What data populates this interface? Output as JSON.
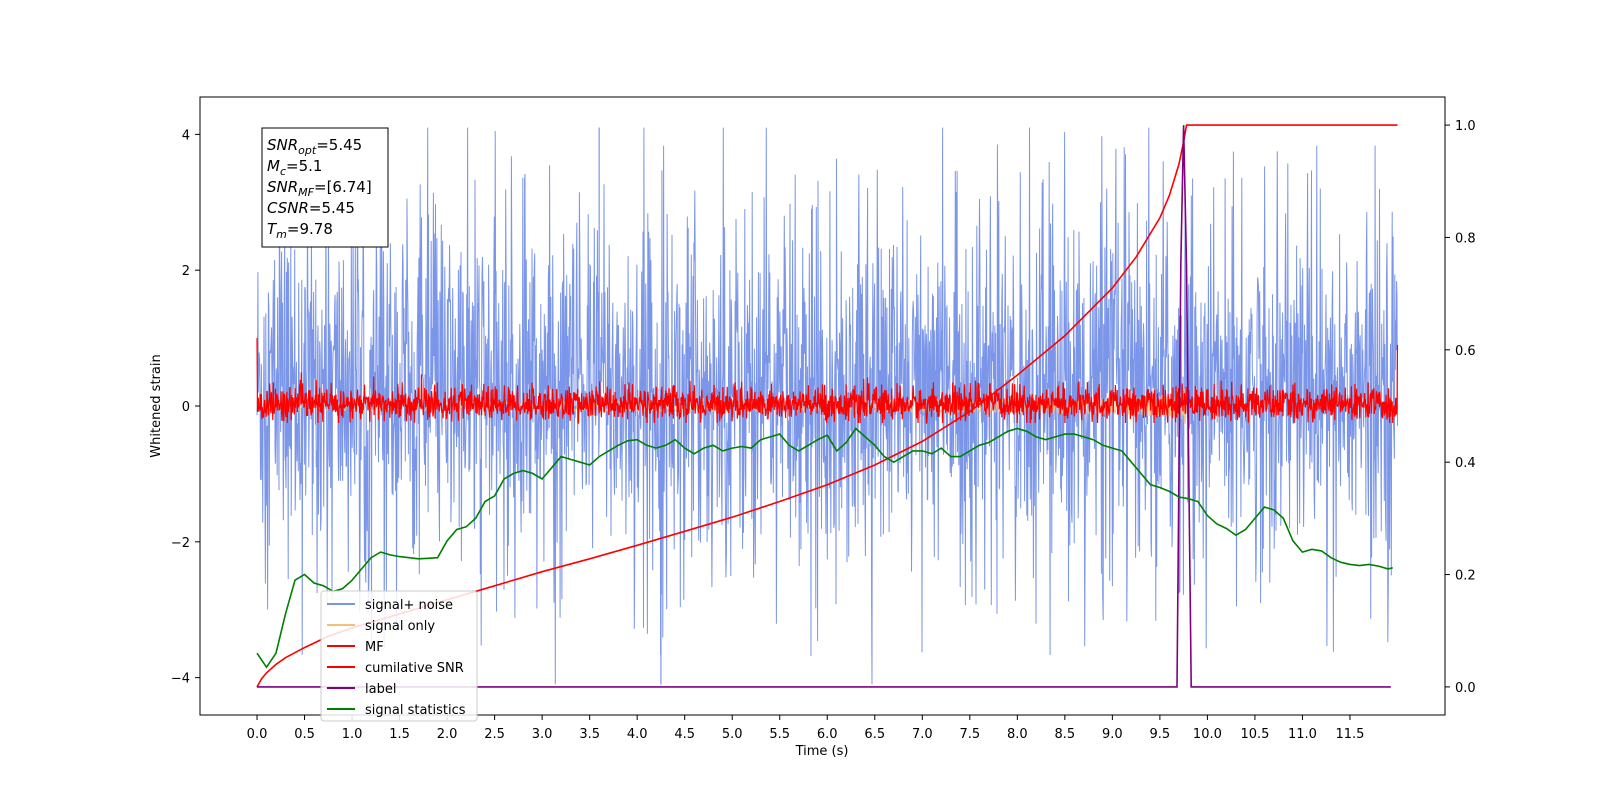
{
  "chart_data": {
    "type": "line",
    "title": "",
    "xlabel": "Time (s)",
    "ylabel": "Whitened strain",
    "ylabel_right": "",
    "xlim": [
      -0.6,
      12.5
    ],
    "ylim": [
      -4.55,
      4.55
    ],
    "ylim_right": [
      -0.05,
      1.05
    ],
    "x_ticks": [
      0.0,
      0.5,
      1.0,
      1.5,
      2.0,
      2.5,
      3.0,
      3.5,
      4.0,
      4.5,
      5.0,
      5.5,
      6.0,
      6.5,
      7.0,
      7.5,
      8.0,
      8.5,
      9.0,
      9.5,
      10.0,
      10.5,
      11.0,
      11.5
    ],
    "x_tick_labels": [
      "0.0",
      "0.5",
      "1.0",
      "1.5",
      "2.0",
      "2.5",
      "3.0",
      "3.5",
      "4.0",
      "4.5",
      "5.0",
      "5.5",
      "6.0",
      "6.5",
      "7.0",
      "7.5",
      "8.0",
      "8.5",
      "9.0",
      "9.5",
      "10.0",
      "10.5",
      "11.0",
      "11.5"
    ],
    "y_ticks": [
      -4,
      -2,
      0,
      2,
      4
    ],
    "y_tick_labels": [
      "−4",
      "−2",
      "0",
      "2",
      "4"
    ],
    "y_ticks_right": [
      0.0,
      0.2,
      0.4,
      0.6,
      0.8,
      1.0
    ],
    "y_tick_labels_right": [
      "0.0",
      "0.2",
      "0.4",
      "0.6",
      "0.8",
      "1.0"
    ],
    "grid": false,
    "legend_position": "lower-left",
    "series": [
      {
        "name": "signal+ noise",
        "axis": "left",
        "color": "#7b96e8",
        "style": "dense-noise",
        "x_range": [
          0.0,
          12.0
        ],
        "band_center": 0.0,
        "typical_range": [
          -2.0,
          2.5
        ],
        "extremes": {
          "max": 4.1,
          "max_at": 3.6,
          "min": -4.1,
          "min_at": 4.25
        }
      },
      {
        "name": "signal only",
        "axis": "left",
        "color": "#f5c07a",
        "style": "chirp",
        "x_range": [
          0.0,
          9.78
        ],
        "peak_amplitude": 0.3,
        "peak_time": 9.78
      },
      {
        "name": "MF",
        "axis": "left",
        "color": "#ff0000",
        "style": "dense-noise",
        "x_range": [
          0.0,
          12.0
        ],
        "band_center": 0.0,
        "typical_range": [
          -0.2,
          0.25
        ],
        "extremes": {
          "max": 0.55,
          "min": -0.25
        },
        "edge_values": {
          "start": 1.0,
          "end": 0.9
        }
      },
      {
        "name": "cumilative SNR",
        "axis": "right",
        "color": "#ff0000",
        "style": "line",
        "x": [
          0.0,
          0.05,
          0.1,
          0.2,
          0.3,
          0.5,
          0.75,
          1.0,
          1.5,
          2.0,
          2.5,
          3.0,
          3.5,
          4.0,
          4.5,
          5.0,
          5.5,
          6.0,
          6.5,
          7.0,
          7.5,
          8.0,
          8.5,
          9.0,
          9.25,
          9.5,
          9.6,
          9.7,
          9.75,
          9.78,
          10.0,
          11.0,
          12.0
        ],
        "values": [
          0.0,
          0.015,
          0.025,
          0.04,
          0.052,
          0.07,
          0.09,
          0.105,
          0.13,
          0.155,
          0.18,
          0.205,
          0.228,
          0.252,
          0.277,
          0.302,
          0.33,
          0.36,
          0.395,
          0.437,
          0.49,
          0.555,
          0.625,
          0.71,
          0.765,
          0.835,
          0.875,
          0.93,
          0.97,
          1.0,
          1.0,
          1.0,
          1.0
        ]
      },
      {
        "name": "label",
        "axis": "right",
        "color": "#800080",
        "style": "line",
        "x": [
          0.0,
          9.68,
          9.72,
          9.75,
          9.78,
          9.83,
          11.93
        ],
        "values": [
          0.0,
          0.0,
          0.75,
          1.0,
          0.75,
          0.0,
          0.0
        ]
      },
      {
        "name": "signal statistics",
        "axis": "right",
        "color": "#008000",
        "style": "line",
        "x": [
          0.0,
          0.1,
          0.2,
          0.3,
          0.4,
          0.5,
          0.6,
          0.7,
          0.8,
          0.9,
          1.0,
          1.1,
          1.2,
          1.3,
          1.4,
          1.5,
          1.6,
          1.7,
          1.8,
          1.9,
          2.0,
          2.1,
          2.2,
          2.3,
          2.4,
          2.5,
          2.6,
          2.7,
          2.8,
          2.9,
          3.0,
          3.1,
          3.2,
          3.3,
          3.4,
          3.5,
          3.6,
          3.7,
          3.8,
          3.9,
          4.0,
          4.1,
          4.2,
          4.3,
          4.4,
          4.5,
          4.6,
          4.7,
          4.8,
          4.9,
          5.0,
          5.1,
          5.2,
          5.3,
          5.4,
          5.5,
          5.6,
          5.7,
          5.8,
          5.9,
          6.0,
          6.1,
          6.2,
          6.3,
          6.4,
          6.5,
          6.6,
          6.7,
          6.8,
          6.9,
          7.0,
          7.1,
          7.2,
          7.3,
          7.4,
          7.5,
          7.6,
          7.7,
          7.8,
          7.9,
          8.0,
          8.1,
          8.2,
          8.3,
          8.4,
          8.5,
          8.6,
          8.7,
          8.8,
          8.9,
          9.0,
          9.1,
          9.2,
          9.3,
          9.4,
          9.5,
          9.6,
          9.7,
          9.8,
          9.9,
          10.0,
          10.1,
          10.2,
          10.3,
          10.4,
          10.5,
          10.6,
          10.7,
          10.8,
          10.9,
          11.0,
          11.1,
          11.2,
          11.3,
          11.4,
          11.5,
          11.6,
          11.7,
          11.8,
          11.9,
          11.95
        ],
        "values": [
          0.06,
          0.035,
          0.06,
          0.13,
          0.19,
          0.2,
          0.185,
          0.18,
          0.17,
          0.175,
          0.19,
          0.21,
          0.23,
          0.24,
          0.235,
          0.232,
          0.23,
          0.228,
          0.229,
          0.23,
          0.26,
          0.28,
          0.285,
          0.3,
          0.33,
          0.34,
          0.37,
          0.38,
          0.385,
          0.38,
          0.37,
          0.39,
          0.41,
          0.405,
          0.4,
          0.395,
          0.41,
          0.42,
          0.43,
          0.438,
          0.44,
          0.43,
          0.425,
          0.43,
          0.44,
          0.425,
          0.415,
          0.425,
          0.43,
          0.42,
          0.425,
          0.428,
          0.425,
          0.44,
          0.445,
          0.45,
          0.43,
          0.42,
          0.43,
          0.44,
          0.448,
          0.42,
          0.435,
          0.46,
          0.445,
          0.43,
          0.41,
          0.4,
          0.41,
          0.42,
          0.42,
          0.415,
          0.425,
          0.41,
          0.41,
          0.42,
          0.43,
          0.435,
          0.445,
          0.455,
          0.46,
          0.455,
          0.445,
          0.44,
          0.445,
          0.45,
          0.45,
          0.445,
          0.44,
          0.43,
          0.425,
          0.42,
          0.4,
          0.38,
          0.36,
          0.355,
          0.348,
          0.338,
          0.335,
          0.33,
          0.305,
          0.29,
          0.282,
          0.27,
          0.28,
          0.3,
          0.32,
          0.315,
          0.3,
          0.26,
          0.24,
          0.245,
          0.242,
          0.23,
          0.222,
          0.218,
          0.216,
          0.218,
          0.215,
          0.21,
          0.212
        ]
      }
    ],
    "annotation_lines": [
      {
        "label": "SNR",
        "sub": "opt",
        "value": "=5.45"
      },
      {
        "label": "M",
        "sub": "c",
        "value": "=5.1"
      },
      {
        "label": "SNR",
        "sub": "MF",
        "value": "=[6.74]"
      },
      {
        "label": "CSNR",
        "sub": "",
        "value": "=5.45"
      },
      {
        "label": "T",
        "sub": "m",
        "value": "=9.78"
      }
    ]
  }
}
